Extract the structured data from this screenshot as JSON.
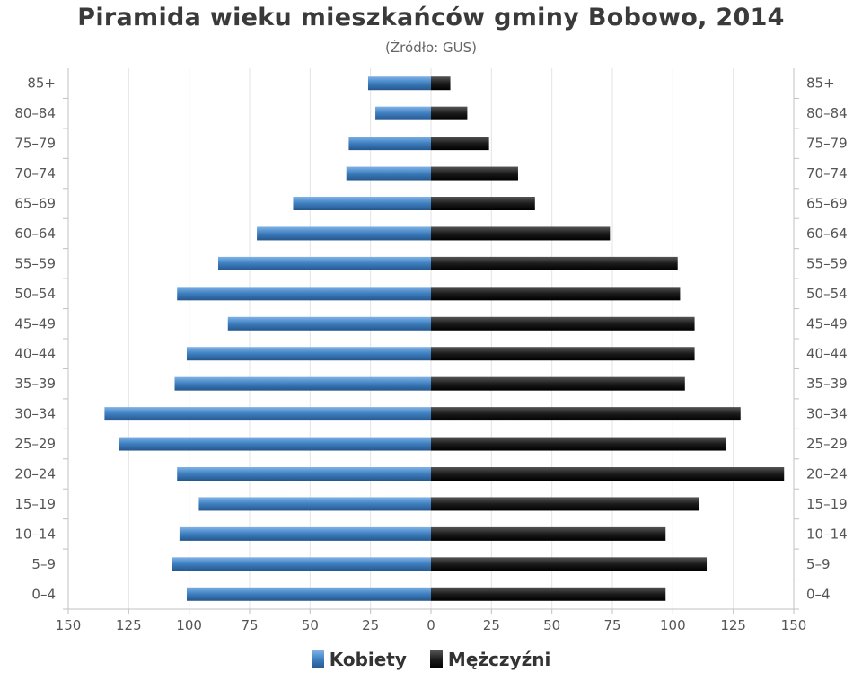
{
  "title": "Piramida wieku mieszkańców gminy Bobowo, 2014",
  "subtitle": "(Źródło: GUS)",
  "colors": {
    "women": "#3d7ebf",
    "men": "#1b1b1b",
    "grid": "#e3e3e3"
  },
  "chart_data": {
    "type": "bar",
    "orientation": "horizontal-pyramid",
    "categories": [
      "0–4",
      "5–9",
      "10–14",
      "15–19",
      "20–24",
      "25–29",
      "30–34",
      "35–39",
      "40–44",
      "45–49",
      "50–54",
      "55–59",
      "60–64",
      "65–69",
      "70–74",
      "75–79",
      "80–84",
      "85+"
    ],
    "series": [
      {
        "name": "Kobiety",
        "side": "left",
        "values": [
          101,
          107,
          104,
          96,
          105,
          129,
          135,
          106,
          101,
          84,
          105,
          88,
          72,
          57,
          35,
          34,
          23,
          26
        ]
      },
      {
        "name": "Mężczyźni",
        "side": "right",
        "values": [
          97,
          114,
          97,
          111,
          146,
          122,
          128,
          105,
          109,
          109,
          103,
          102,
          74,
          43,
          36,
          24,
          15,
          8
        ]
      }
    ],
    "x_ticks": [
      "150",
      "125",
      "100",
      "75",
      "50",
      "25",
      "0",
      "25",
      "50",
      "75",
      "100",
      "125",
      "150"
    ],
    "xlim": [
      -150,
      150
    ],
    "grid": true,
    "legend_position": "bottom-center"
  }
}
